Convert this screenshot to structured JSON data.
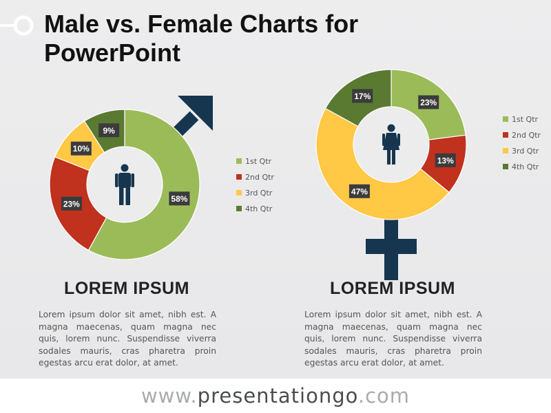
{
  "title_line1": "Male vs. Female Charts for",
  "title_line2": "PowerPoint",
  "footer": {
    "prefix": "www.",
    "brand": "presentationgo",
    "suffix": ".com"
  },
  "colors": {
    "q1": "#9bbb59",
    "q2": "#c0311e",
    "q3": "#ffc845",
    "q4": "#5a7a32",
    "symbol": "#16364f",
    "label_bg": "#3b3b3b"
  },
  "left_block": {
    "heading": "LOREM IPSUM",
    "body": "Lorem ipsum dolor sit amet, nibh est. A magna maecenas, quam magna nec quis, lorem nunc. Suspendisse viverra sodales mauris, cras pharetra proin egestas arcu erat dolor, at amet."
  },
  "right_block": {
    "heading": "LOREM IPSUM",
    "body": "Lorem ipsum dolor sit amet, nibh est. A magna maecenas, quam magna nec quis, lorem nunc. Suspendisse viverra sodales mauris, cras pharetra proin egestas arcu erat dolor, at amet."
  },
  "chart_data": [
    {
      "type": "pie",
      "categories": [
        "1st Qtr",
        "2nd Qtr",
        "3rd Qtr",
        "4th Qtr"
      ],
      "values": [
        58,
        23,
        10,
        9
      ],
      "labels": [
        "58%",
        "23%",
        "10%",
        "9%"
      ],
      "legend_position": "right",
      "center_icon": "male-person-icon",
      "symbol": "male-arrow"
    },
    {
      "type": "pie",
      "categories": [
        "1st Qtr",
        "2nd Qtr",
        "3rd Qtr",
        "4th Qtr"
      ],
      "values": [
        23,
        13,
        47,
        17
      ],
      "labels": [
        "23%",
        "13%",
        "47%",
        "17%"
      ],
      "legend_position": "right",
      "center_icon": "female-person-icon",
      "symbol": "female-cross"
    }
  ]
}
